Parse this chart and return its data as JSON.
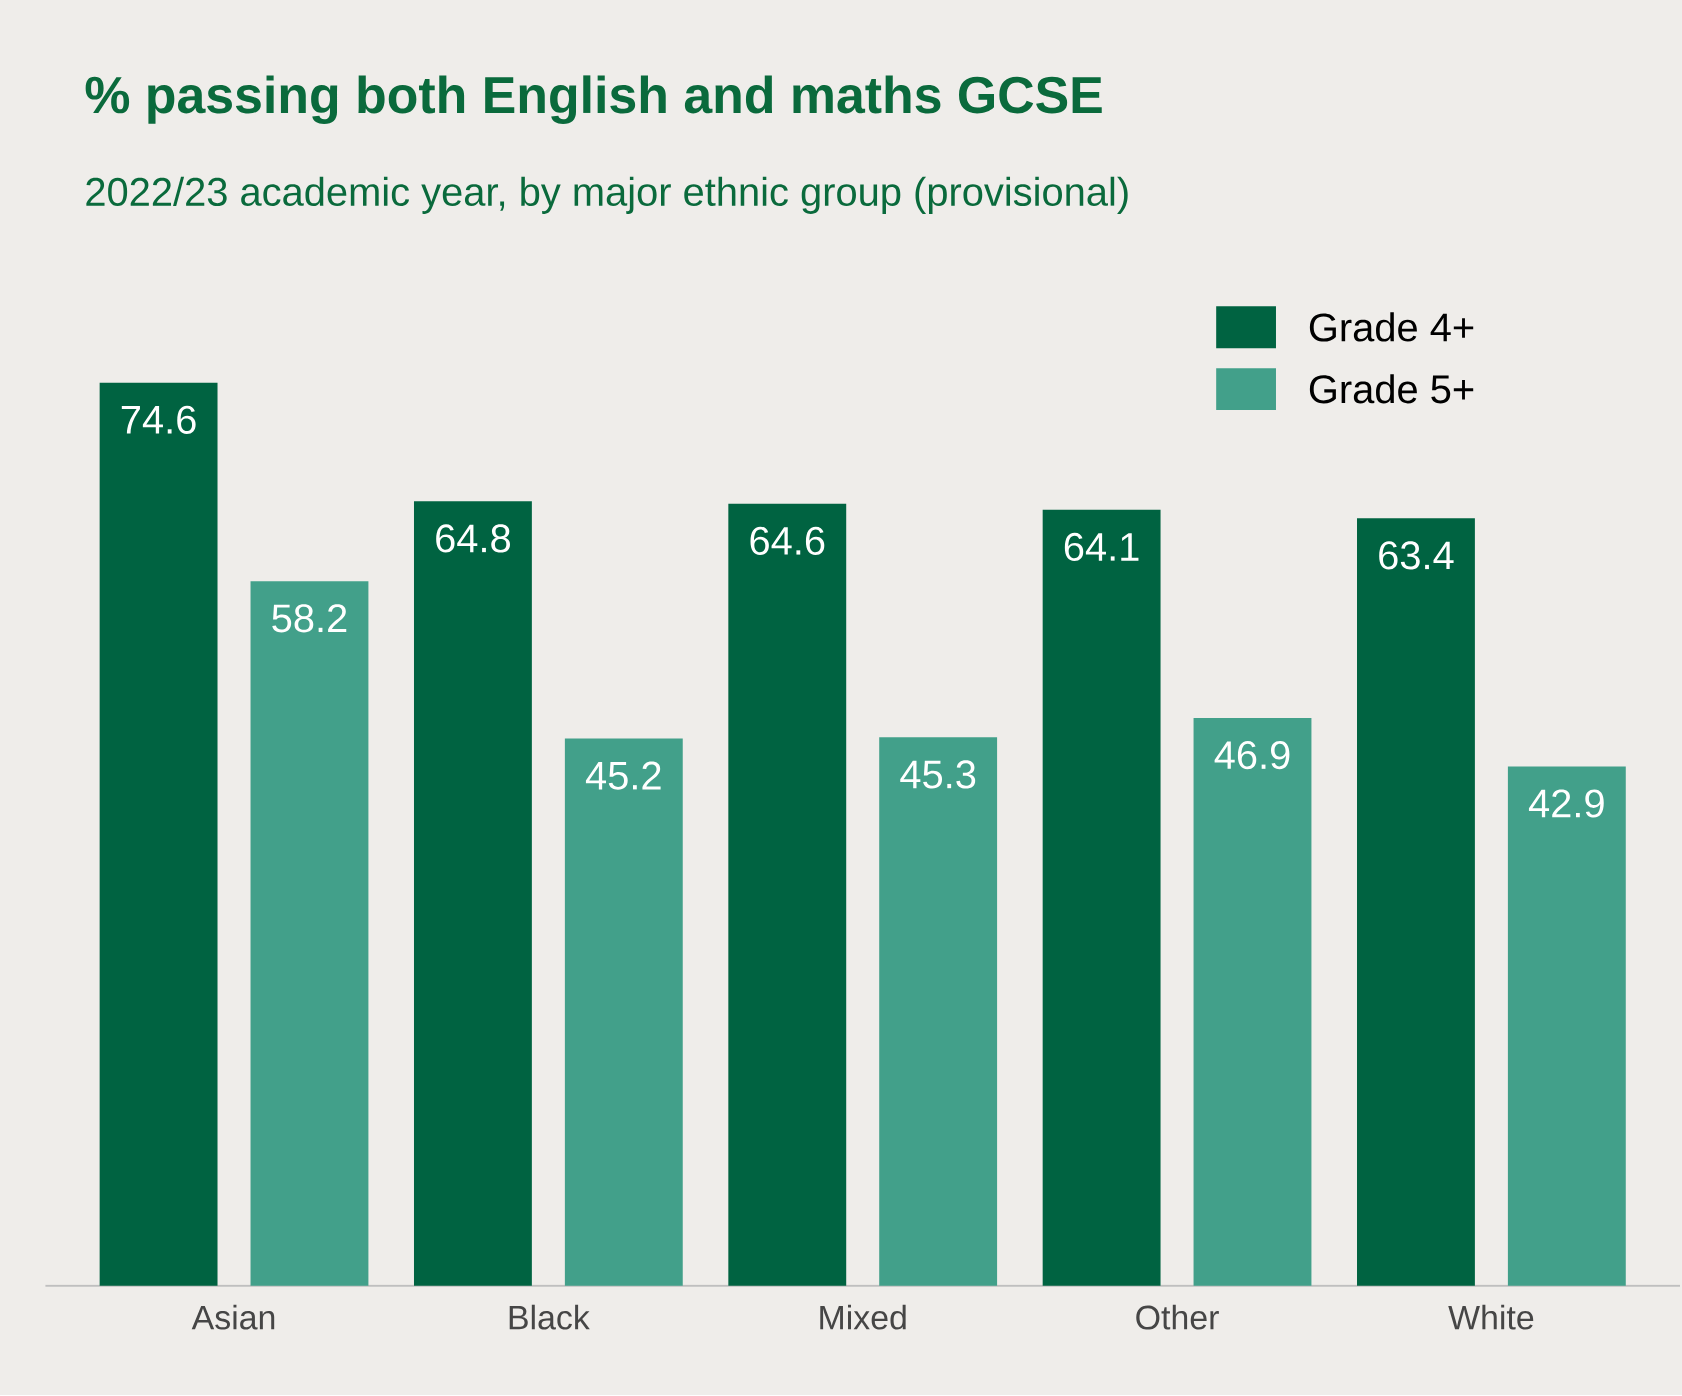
{
  "chart_data": {
    "type": "bar",
    "title": "% passing both English and maths GCSE",
    "subtitle": "2022/23 academic year, by major ethnic group (provisional)",
    "categories": [
      "Asian",
      "Black",
      "Mixed",
      "Other",
      "White"
    ],
    "series": [
      {
        "name": "Grade 4+",
        "color": "#006341",
        "values": [
          74.6,
          64.8,
          64.6,
          64.1,
          63.4
        ]
      },
      {
        "name": "Grade 5+",
        "color": "#42a08a",
        "values": [
          58.2,
          45.2,
          45.3,
          46.9,
          42.9
        ]
      }
    ],
    "data_labels": true,
    "legend": "top right"
  }
}
